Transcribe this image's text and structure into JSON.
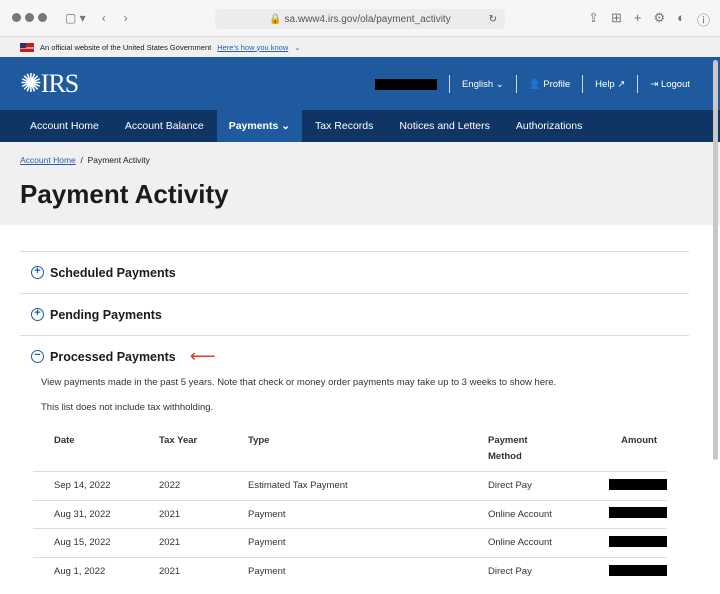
{
  "browser": {
    "url": "sa.www4.irs.gov/ola/payment_activity"
  },
  "banner": {
    "text": "An official website of the United States Government",
    "link": "Here's how you know"
  },
  "header": {
    "logo": "IRS",
    "language": "English",
    "profile": "Profile",
    "help": "Help",
    "logout": "Logout"
  },
  "nav": [
    "Account Home",
    "Account Balance",
    "Payments",
    "Tax Records",
    "Notices and Letters",
    "Authorizations"
  ],
  "breadcrumb": {
    "home": "Account Home",
    "current": "Payment Activity"
  },
  "page_title": "Payment Activity",
  "sections": {
    "scheduled": "Scheduled Payments",
    "pending": "Pending Payments",
    "processed": "Processed Payments"
  },
  "processed": {
    "desc1": "View payments made in the past 5 years. Note that check or money order payments may take up to 3 weeks to show here.",
    "desc2": "This list does not include tax withholding."
  },
  "table": {
    "headers": [
      "Date",
      "Tax Year",
      "Type",
      "Payment Method",
      "Amount"
    ],
    "rows": [
      [
        "Sep 14, 2022",
        "2022",
        "Estimated Tax Payment",
        "Direct Pay"
      ],
      [
        "Aug 31, 2022",
        "2021",
        "Payment",
        "Online Account"
      ],
      [
        "Aug 15, 2022",
        "2021",
        "Payment",
        "Online Account"
      ],
      [
        "Aug 1, 2022",
        "2021",
        "Payment",
        "Direct Pay"
      ]
    ]
  },
  "colors": {
    "header": "#1f5a9e",
    "nav": "#0f3565",
    "arrow": "#e03a2c"
  }
}
